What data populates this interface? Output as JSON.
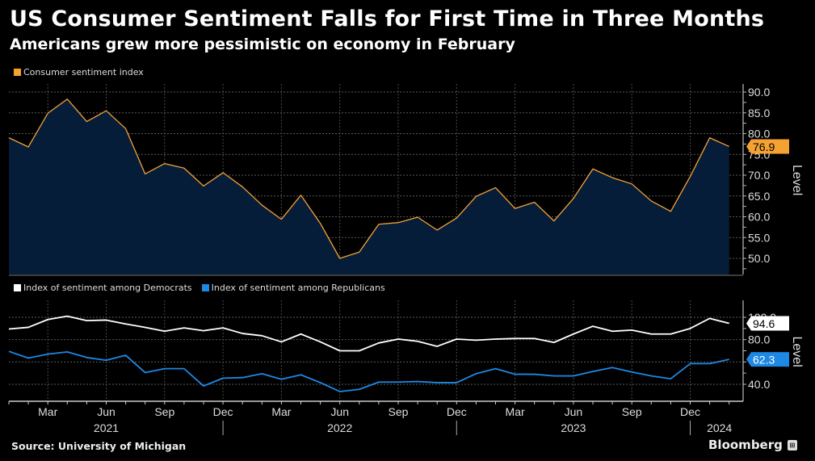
{
  "header": {
    "title": "US Consumer Sentiment Falls for First Time in Three Months",
    "subtitle": "Americans grew more pessimistic on economy in February"
  },
  "footer": {
    "source": "Source: University of Michigan",
    "brand": "Bloomberg"
  },
  "chart_data": [
    {
      "type": "area",
      "title": "Consumer sentiment index",
      "ylabel": "Level",
      "ylim": [
        47.0,
        92.0
      ],
      "yticks": [
        50.0,
        55.0,
        60.0,
        65.0,
        70.0,
        75.0,
        80.0,
        85.0,
        90.0
      ],
      "grid": true,
      "legend": "top-left",
      "x": [
        "2021-01",
        "2021-02",
        "2021-03",
        "2021-04",
        "2021-05",
        "2021-06",
        "2021-07",
        "2021-08",
        "2021-09",
        "2021-10",
        "2021-11",
        "2021-12",
        "2022-01",
        "2022-02",
        "2022-03",
        "2022-04",
        "2022-05",
        "2022-06",
        "2022-07",
        "2022-08",
        "2022-09",
        "2022-10",
        "2022-11",
        "2022-12",
        "2023-01",
        "2023-02",
        "2023-03",
        "2023-04",
        "2023-05",
        "2023-06",
        "2023-07",
        "2023-08",
        "2023-09",
        "2023-10",
        "2023-11",
        "2023-12",
        "2024-01",
        "2024-02"
      ],
      "series": [
        {
          "name": "Consumer sentiment index",
          "color": "#f5a233",
          "fill": "#061d3a",
          "values": [
            79.0,
            76.8,
            84.9,
            88.3,
            82.9,
            85.5,
            81.2,
            70.3,
            72.8,
            71.7,
            67.4,
            70.6,
            67.2,
            62.8,
            59.4,
            65.2,
            58.4,
            50.0,
            51.5,
            58.2,
            58.6,
            59.9,
            56.8,
            59.7,
            64.9,
            67.0,
            62.0,
            63.5,
            59.0,
            64.4,
            71.5,
            69.4,
            67.9,
            63.8,
            61.3,
            69.7,
            79.0,
            76.9
          ],
          "last_label": "76.9"
        }
      ]
    },
    {
      "type": "line",
      "title": "",
      "ylabel": "Level",
      "ylim": [
        30.0,
        110.0
      ],
      "yticks": [
        40.0,
        80.0,
        100.0
      ],
      "ytick_labels": [
        "40.0",
        "80.0",
        "100.0"
      ],
      "grid": true,
      "legend": "top-left",
      "x": [
        "2021-01",
        "2021-02",
        "2021-03",
        "2021-04",
        "2021-05",
        "2021-06",
        "2021-07",
        "2021-08",
        "2021-09",
        "2021-10",
        "2021-11",
        "2021-12",
        "2022-01",
        "2022-02",
        "2022-03",
        "2022-04",
        "2022-05",
        "2022-06",
        "2022-07",
        "2022-08",
        "2022-09",
        "2022-10",
        "2022-11",
        "2022-12",
        "2023-01",
        "2023-02",
        "2023-03",
        "2023-04",
        "2023-05",
        "2023-06",
        "2023-07",
        "2023-08",
        "2023-09",
        "2023-10",
        "2023-11",
        "2023-12",
        "2024-01",
        "2024-02"
      ],
      "series": [
        {
          "name": "Index of sentiment among Democrats",
          "color": "#ffffff",
          "values": [
            89.5,
            91.0,
            98.0,
            101.0,
            97.0,
            97.5,
            94.0,
            91.0,
            87.5,
            90.5,
            88.0,
            90.5,
            85.5,
            83.5,
            78.0,
            85.0,
            78.0,
            70.0,
            70.0,
            77.0,
            80.5,
            78.5,
            74.0,
            80.5,
            79.5,
            80.5,
            81.0,
            81.0,
            77.5,
            85.0,
            92.0,
            87.5,
            88.5,
            85.0,
            85.0,
            90.0,
            99.0,
            94.6
          ],
          "last_label": "94.6"
        },
        {
          "name": "Index of sentiment among Republicans",
          "color": "#1e88e5",
          "values": [
            69.5,
            63.5,
            67.0,
            69.0,
            64.0,
            61.5,
            66.0,
            50.5,
            54.0,
            54.0,
            38.5,
            45.5,
            46.0,
            49.5,
            44.5,
            48.5,
            41.5,
            33.5,
            35.5,
            42.0,
            42.0,
            42.5,
            41.5,
            41.5,
            49.5,
            54.0,
            49.0,
            49.0,
            47.5,
            47.5,
            51.5,
            55.0,
            51.0,
            47.5,
            45.0,
            58.5,
            58.5,
            62.3
          ],
          "last_label": "62.3"
        }
      ]
    }
  ],
  "xaxis": {
    "month_labels": [
      {
        "label": "Mar",
        "month_index": 2
      },
      {
        "label": "Jun",
        "month_index": 5
      },
      {
        "label": "Sep",
        "month_index": 8
      },
      {
        "label": "Dec",
        "month_index": 11
      },
      {
        "label": "Mar",
        "month_index": 14
      },
      {
        "label": "Jun",
        "month_index": 17
      },
      {
        "label": "Sep",
        "month_index": 20
      },
      {
        "label": "Dec",
        "month_index": 23
      },
      {
        "label": "Mar",
        "month_index": 26
      },
      {
        "label": "Jun",
        "month_index": 29
      },
      {
        "label": "Sep",
        "month_index": 32
      },
      {
        "label": "Dec",
        "month_index": 35
      }
    ],
    "year_labels": [
      {
        "label": "2021",
        "month_index": 5
      },
      {
        "label": "2022",
        "month_index": 17
      },
      {
        "label": "2023",
        "month_index": 29
      },
      {
        "label": "2024",
        "month_index": 36.5
      }
    ],
    "year_separators": [
      11,
      23,
      35
    ]
  }
}
